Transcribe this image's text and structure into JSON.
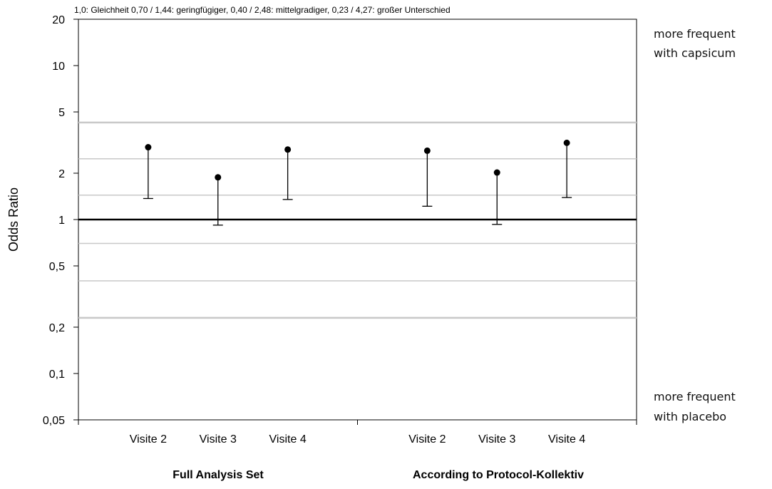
{
  "chart_data": {
    "type": "scatter",
    "title": "1,0: Gleichheit  0,70 / 1,44: geringfügiger, 0,40 / 2,48: mittelgradiger, 0,23 / 4,27: großer Unterschied",
    "ylabel": "Odds Ratio",
    "xlabel": "",
    "y_scale": "log",
    "ylim": [
      0.05,
      20
    ],
    "y_ticks": [
      {
        "value": 20,
        "label": "20"
      },
      {
        "value": 10,
        "label": "10"
      },
      {
        "value": 5,
        "label": "5"
      },
      {
        "value": 2,
        "label": "2"
      },
      {
        "value": 1,
        "label": "1"
      },
      {
        "value": 0.5,
        "label": "0,5"
      },
      {
        "value": 0.2,
        "label": "0,2"
      },
      {
        "value": 0.1,
        "label": "0,1"
      },
      {
        "value": 0.05,
        "label": "0,05"
      }
    ],
    "reference_lines": [
      {
        "value": 1.0,
        "style": "bold"
      },
      {
        "value": 0.7,
        "style": "thin"
      },
      {
        "value": 1.44,
        "style": "thin"
      },
      {
        "value": 0.4,
        "style": "thin"
      },
      {
        "value": 2.48,
        "style": "thin"
      },
      {
        "value": 0.23,
        "style": "thick-gray"
      },
      {
        "value": 4.27,
        "style": "thick-gray"
      }
    ],
    "groups": [
      {
        "name": "Full Analysis Set",
        "points": [
          {
            "category": "Visite 2",
            "odds_ratio": 2.95,
            "lower": 1.37
          },
          {
            "category": "Visite 3",
            "odds_ratio": 1.88,
            "lower": 0.92
          },
          {
            "category": "Visite 4",
            "odds_ratio": 2.85,
            "lower": 1.35
          }
        ]
      },
      {
        "name": "According to Protocol-Kollektiv",
        "points": [
          {
            "category": "Visite 2",
            "odds_ratio": 2.8,
            "lower": 1.22
          },
          {
            "category": "Visite 3",
            "odds_ratio": 2.02,
            "lower": 0.93
          },
          {
            "category": "Visite 4",
            "odds_ratio": 3.15,
            "lower": 1.39
          }
        ]
      }
    ],
    "annotations": {
      "upper": [
        "more frequent",
        "with capsicum"
      ],
      "lower": [
        "more frequent",
        "with placebo"
      ]
    },
    "grid": false,
    "legend": "none",
    "colors": {
      "marker": "#000000",
      "axis": "#000000",
      "refline": "#c8c8c8"
    }
  }
}
